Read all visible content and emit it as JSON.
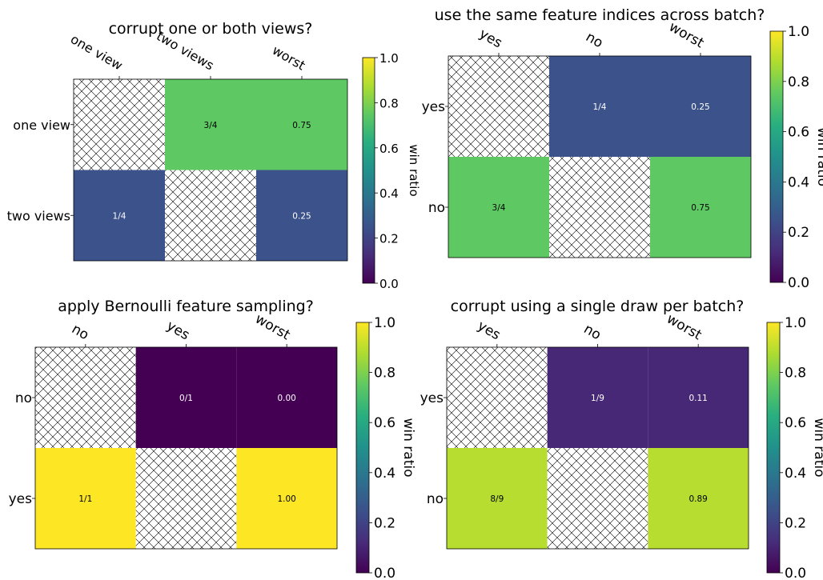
{
  "colorbar": {
    "label": "win ratio",
    "ticks": [
      "0.0",
      "0.2",
      "0.4",
      "0.6",
      "0.8",
      "1.0"
    ],
    "colormap": "viridis",
    "range": [
      0,
      1
    ]
  },
  "chart_data": [
    {
      "type": "heatmap",
      "title": "corrupt one or both views?",
      "x_labels": [
        "one view",
        "two views",
        "worst"
      ],
      "y_labels": [
        "one view",
        "two views"
      ],
      "values": [
        [
          null,
          0.75,
          0.75
        ],
        [
          0.25,
          null,
          0.25
        ]
      ],
      "annotations": [
        [
          "",
          "3/4",
          "0.75"
        ],
        [
          "1/4",
          "",
          "0.25"
        ]
      ],
      "hatched_cells": [
        [
          0,
          0
        ],
        [
          1,
          1
        ]
      ],
      "colorbar_label": "win ratio",
      "clim": [
        0,
        1
      ]
    },
    {
      "type": "heatmap",
      "title": "use the same feature indices across batch?",
      "x_labels": [
        "yes",
        "no",
        "worst"
      ],
      "y_labels": [
        "yes",
        "no"
      ],
      "values": [
        [
          null,
          0.25,
          0.25
        ],
        [
          0.75,
          null,
          0.75
        ]
      ],
      "annotations": [
        [
          "",
          "1/4",
          "0.25"
        ],
        [
          "3/4",
          "",
          "0.75"
        ]
      ],
      "hatched_cells": [
        [
          0,
          0
        ],
        [
          1,
          1
        ]
      ],
      "colorbar_label": "win ratio",
      "clim": [
        0,
        1
      ]
    },
    {
      "type": "heatmap",
      "title": "apply Bernoulli feature sampling?",
      "x_labels": [
        "no",
        "yes",
        "worst"
      ],
      "y_labels": [
        "no",
        "yes"
      ],
      "values": [
        [
          null,
          0.0,
          0.0
        ],
        [
          1.0,
          null,
          1.0
        ]
      ],
      "annotations": [
        [
          "",
          "0/1",
          "0.00"
        ],
        [
          "1/1",
          "",
          "1.00"
        ]
      ],
      "hatched_cells": [
        [
          0,
          0
        ],
        [
          1,
          1
        ]
      ],
      "colorbar_label": "win ratio",
      "clim": [
        0,
        1
      ]
    },
    {
      "type": "heatmap",
      "title": "corrupt using a single draw per batch?",
      "x_labels": [
        "yes",
        "no",
        "worst"
      ],
      "y_labels": [
        "yes",
        "no"
      ],
      "values": [
        [
          null,
          0.111,
          0.111
        ],
        [
          0.889,
          null,
          0.889
        ]
      ],
      "annotations": [
        [
          "",
          "1/9",
          "0.11"
        ],
        [
          "8/9",
          "",
          "0.89"
        ]
      ],
      "hatched_cells": [
        [
          0,
          0
        ],
        [
          1,
          1
        ]
      ],
      "colorbar_label": "win ratio",
      "clim": [
        0,
        1
      ]
    }
  ]
}
